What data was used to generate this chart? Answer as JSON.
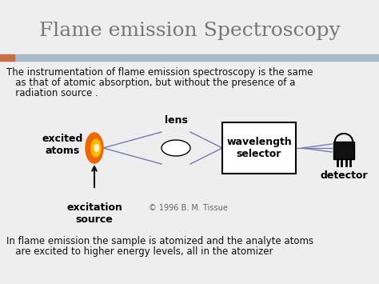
{
  "title": "Flame emission Spectroscopy",
  "title_fontsize": 18,
  "title_color": "#777777",
  "bg_color": "#eeeeee",
  "header_bar_color": "#aabbcc",
  "header_bar_accent": "#c87040",
  "text1_line1": "The instrumentation of flame emission spectroscopy is the same",
  "text1_line2": "   as that of atomic absorption, but without the presence of a",
  "text1_line3": "   radiation source .",
  "text1_fontsize": 8.5,
  "text1_color": "#111111",
  "label_excited": "excited\natoms",
  "label_excitation": "excitation\nsource",
  "label_lens": "lens",
  "label_wavelength": "wavelength\nselector",
  "label_detector": "detector",
  "label_copyright": "© 1996 B. M. Tissue",
  "text2_line1": "In flame emission the sample is atomized and the analyte atoms",
  "text2_line2": "   are excited to higher energy levels, all in the atomizer",
  "text2_fontsize": 8.5,
  "text2_color": "#111111",
  "line_color": "#7777bb",
  "arrow_color": "#111111",
  "white": "#ffffff",
  "black": "#000000",
  "flame_orange": "#ee6600",
  "flame_yellow": "#ffbb00",
  "flame_white": "#ffffff",
  "detector_dark": "#111111"
}
